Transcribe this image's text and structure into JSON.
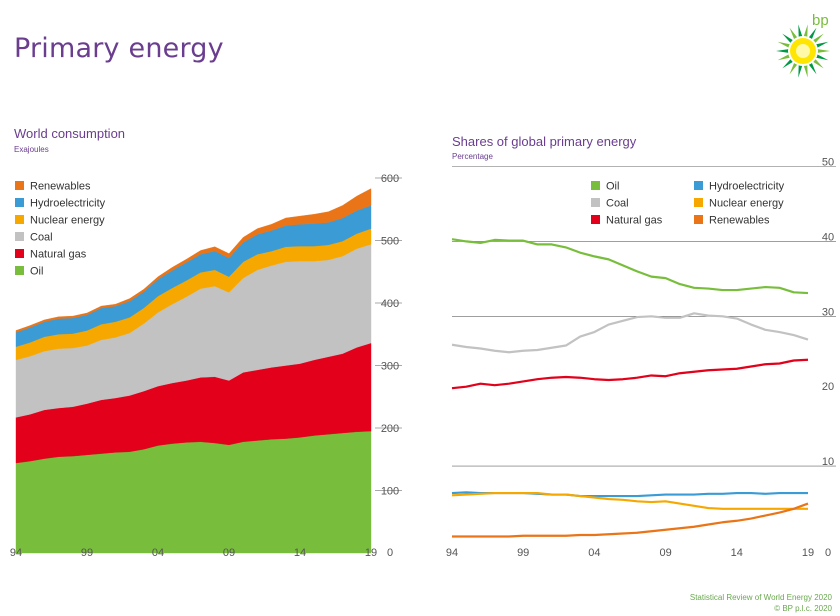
{
  "page": {
    "title": "Primary energy",
    "logo_text": "bp",
    "footer_line1": "Statistical Review of World Energy 2020",
    "footer_line2": "© BP p.l.c. 2020"
  },
  "colors": {
    "oil": "#78be3c",
    "natural_gas": "#e2001a",
    "coal": "#c2c2c2",
    "nuclear": "#f6a800",
    "hydro": "#3a9bd5",
    "renewables": "#ea7518",
    "title": "#6a3d8f"
  },
  "chart_data": [
    {
      "type": "area",
      "stacked": true,
      "title": "World consumption",
      "subtitle": "Exajoules",
      "x": [
        1994,
        1995,
        1996,
        1997,
        1998,
        1999,
        2000,
        2001,
        2002,
        2003,
        2004,
        2005,
        2006,
        2007,
        2008,
        2009,
        2010,
        2011,
        2012,
        2013,
        2014,
        2015,
        2016,
        2017,
        2018,
        2019
      ],
      "x_tick_labels": [
        "94",
        "99",
        "04",
        "09",
        "14",
        "19"
      ],
      "x_tick_years": [
        1994,
        1999,
        2004,
        2009,
        2014,
        2019
      ],
      "ylim": [
        0,
        600
      ],
      "y_ticks": [
        0,
        100,
        200,
        300,
        400,
        500,
        600
      ],
      "legend_position": "top-left",
      "series": [
        {
          "name": "Oil",
          "key": "oil",
          "values": [
            144,
            147,
            151,
            154,
            155,
            157,
            159,
            161,
            162,
            166,
            172,
            175,
            177,
            178,
            176,
            173,
            178,
            180,
            182,
            183,
            185,
            188,
            190,
            192,
            194,
            195
          ]
        },
        {
          "name": "Natural gas",
          "key": "natural_gas",
          "values": [
            73,
            75,
            78,
            78,
            79,
            82,
            86,
            87,
            90,
            93,
            95,
            97,
            99,
            103,
            106,
            103,
            111,
            113,
            115,
            117,
            118,
            121,
            124,
            127,
            135,
            141
          ]
        },
        {
          "name": "Coal",
          "key": "coal",
          "values": [
            92,
            93,
            94,
            95,
            94,
            93,
            96,
            97,
            100,
            108,
            118,
            126,
            134,
            142,
            145,
            141,
            151,
            160,
            163,
            166,
            164,
            158,
            155,
            156,
            158,
            158
          ]
        },
        {
          "name": "Nuclear energy",
          "key": "nuclear",
          "values": [
            21,
            22,
            23,
            23,
            23,
            24,
            25,
            25,
            25,
            25,
            26,
            26,
            26,
            26,
            26,
            25,
            26,
            25,
            23,
            24,
            24,
            24,
            24,
            24,
            24,
            25
          ]
        },
        {
          "name": "Hydroelectricity",
          "key": "hydro",
          "values": [
            23,
            24,
            24,
            25,
            25,
            25,
            26,
            25,
            26,
            26,
            27,
            28,
            29,
            29,
            30,
            30,
            31,
            32,
            33,
            34,
            35,
            36,
            36,
            37,
            37,
            37
          ]
        },
        {
          "name": "Renewables",
          "key": "renewables",
          "values": [
            3,
            3,
            3,
            3,
            3,
            3,
            3,
            3,
            4,
            4,
            4,
            5,
            5,
            6,
            7,
            7,
            8,
            9,
            10,
            12,
            13,
            15,
            17,
            20,
            23,
            27
          ]
        }
      ],
      "legend": [
        {
          "name": "Renewables",
          "key": "renewables"
        },
        {
          "name": "Hydroelectricity",
          "key": "hydro"
        },
        {
          "name": "Nuclear energy",
          "key": "nuclear"
        },
        {
          "name": "Coal",
          "key": "coal"
        },
        {
          "name": "Natural gas",
          "key": "natural_gas"
        },
        {
          "name": "Oil",
          "key": "oil"
        }
      ]
    },
    {
      "type": "line",
      "title": "Shares of global primary energy",
      "subtitle": "Percentage",
      "x": [
        1994,
        1995,
        1996,
        1997,
        1998,
        1999,
        2000,
        2001,
        2002,
        2003,
        2004,
        2005,
        2006,
        2007,
        2008,
        2009,
        2010,
        2011,
        2012,
        2013,
        2014,
        2015,
        2016,
        2017,
        2018,
        2019
      ],
      "x_tick_labels": [
        "94",
        "99",
        "04",
        "09",
        "14",
        "19"
      ],
      "x_tick_years": [
        1994,
        1999,
        2004,
        2009,
        2014,
        2019
      ],
      "ylim": [
        0,
        50
      ],
      "y_ticks": [
        10,
        20,
        30,
        40,
        50
      ],
      "grid_lines": [
        10,
        30,
        40,
        50
      ],
      "legend_position": "top-right",
      "series": [
        {
          "name": "Oil",
          "key": "oil",
          "values": [
            40.3,
            40.0,
            39.8,
            40.2,
            40.1,
            40.1,
            39.6,
            39.6,
            39.2,
            38.5,
            38.0,
            37.6,
            36.8,
            36.0,
            35.3,
            35.1,
            34.3,
            33.8,
            33.7,
            33.5,
            33.5,
            33.7,
            33.9,
            33.8,
            33.2,
            33.1
          ]
        },
        {
          "name": "Coal",
          "key": "coal",
          "values": [
            26.2,
            25.9,
            25.7,
            25.4,
            25.2,
            25.4,
            25.5,
            25.8,
            26.1,
            27.3,
            27.9,
            28.9,
            29.4,
            29.9,
            30.0,
            29.8,
            29.8,
            30.4,
            30.1,
            30.0,
            29.7,
            28.9,
            28.2,
            27.9,
            27.5,
            26.9
          ]
        },
        {
          "name": "Natural gas",
          "key": "natural_gas",
          "values": [
            20.4,
            20.6,
            21.0,
            20.8,
            21.0,
            21.3,
            21.6,
            21.8,
            21.9,
            21.8,
            21.6,
            21.5,
            21.6,
            21.8,
            22.1,
            22.0,
            22.4,
            22.6,
            22.8,
            22.9,
            23.0,
            23.3,
            23.6,
            23.7,
            24.1,
            24.2
          ]
        },
        {
          "name": "Hydroelectricity",
          "key": "hydro",
          "values": [
            6.4,
            6.5,
            6.4,
            6.4,
            6.4,
            6.4,
            6.3,
            6.2,
            6.2,
            6.0,
            6.0,
            6.0,
            6.0,
            6.0,
            6.1,
            6.2,
            6.2,
            6.2,
            6.3,
            6.3,
            6.4,
            6.4,
            6.3,
            6.4,
            6.4,
            6.4
          ]
        },
        {
          "name": "Nuclear energy",
          "key": "nuclear",
          "values": [
            6.1,
            6.2,
            6.3,
            6.4,
            6.4,
            6.4,
            6.4,
            6.2,
            6.2,
            6.0,
            5.8,
            5.6,
            5.5,
            5.3,
            5.2,
            5.3,
            5.0,
            4.7,
            4.4,
            4.3,
            4.3,
            4.3,
            4.3,
            4.3,
            4.3,
            4.3
          ]
        },
        {
          "name": "Renewables",
          "key": "renewables",
          "values": [
            0.6,
            0.6,
            0.6,
            0.6,
            0.6,
            0.7,
            0.7,
            0.7,
            0.7,
            0.8,
            0.8,
            0.9,
            1.0,
            1.1,
            1.3,
            1.5,
            1.7,
            1.9,
            2.2,
            2.5,
            2.7,
            3.0,
            3.4,
            3.8,
            4.3,
            5.0
          ]
        }
      ],
      "legend": [
        {
          "name": "Oil",
          "key": "oil"
        },
        {
          "name": "Hydroelectricity",
          "key": "hydro"
        },
        {
          "name": "Coal",
          "key": "coal"
        },
        {
          "name": "Nuclear energy",
          "key": "nuclear"
        },
        {
          "name": "Natural gas",
          "key": "natural_gas"
        },
        {
          "name": "Renewables",
          "key": "renewables"
        }
      ]
    }
  ]
}
